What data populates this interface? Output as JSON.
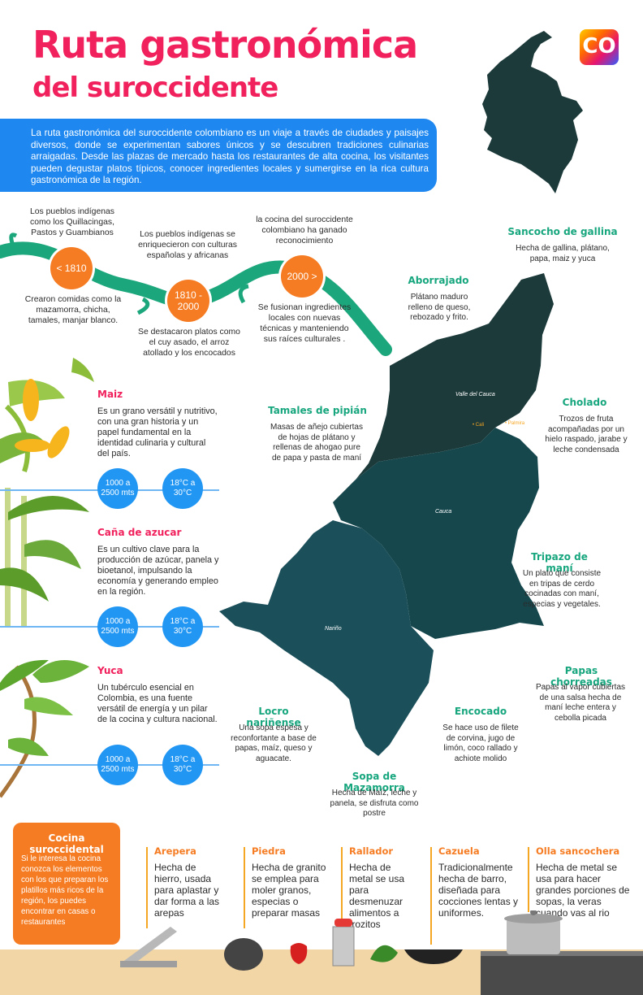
{
  "title_line1": "Ruta gastronómica",
  "title_line2": "del suroccidente",
  "logo_text": "CO",
  "intro": "La ruta gastronómica del suroccidente colombiano es un viaje a través de ciudades y paisajes diversos, donde se experimentan sabores únicos y se descubren tradiciones culinarias arraigadas. Desde las plazas de mercado hasta los restaurantes de alta cocina, los visitantes pueden degustar platos típicos, conocer ingredientes locales y sumergirse en la rica cultura gastronómica de la región.",
  "timeline": [
    {
      "label": "< 1810",
      "above": "Los pueblos indígenas como los Quillacingas, Pastos y Guambianos",
      "below": "Crearon comidas como la mazamorra, chicha, tamales, manjar blanco."
    },
    {
      "label": "1810 - 2000",
      "above": "Los pueblos indígenas se enriquecieron con culturas españolas y africanas",
      "below": "Se destacaron platos como el cuy asado, el arroz atollado y los encocados"
    },
    {
      "label": "2000 >",
      "above": "la cocina del suroccidente colombiano ha ganado reconocimiento",
      "below": "Se fusionan ingredientes locales con nuevas técnicas y manteniendo sus raíces culturales ."
    }
  ],
  "crops": [
    {
      "name": "Maiz",
      "desc": "Es un grano versátil y nutritivo, con una gran historia y un papel fundamental en la identidad culinaria y cultural del país.",
      "altitude": "1000 a 2500 mts",
      "temp": "18°C a 30°C"
    },
    {
      "name": "Caña de azucar",
      "desc": "Es un cultivo clave para la producción de azúcar, panela y bioetanol, impulsando la economía y generando empleo en la región.",
      "altitude": "1000 a 2500 mts",
      "temp": "18°C a 30°C"
    },
    {
      "name": "Yuca",
      "desc": "Un tubérculo esencial en Colombia, es una fuente versátil de energía y un pilar de la cocina y cultura nacional.",
      "altitude": "1000 a 2500 mts",
      "temp": "18°C a 30°C"
    }
  ],
  "dishes": [
    {
      "name": "Sancocho de gallina",
      "desc": "Hecha de gallina, plátano, papa, maiz y yuca"
    },
    {
      "name": "Aborrajado",
      "desc": "Plátano maduro relleno de queso, rebozado y frito."
    },
    {
      "name": "Cholado",
      "desc": "Trozos de fruta acompañadas por un hielo raspado, jarabe y leche condensada"
    },
    {
      "name": "Tamales de pipián",
      "desc": "Masas de añejo cubiertas de hojas de plátano y rellenas de ahogao pure de papa y pasta de maní"
    },
    {
      "name": "Tripazo de maní",
      "desc": "Un plato que consiste en tripas de cerdo cocinadas con maní, especias y vegetales."
    },
    {
      "name": "Papas chorreadas",
      "desc": "Papas al vapor cubiertas de una salsa hecha de maní leche entera y cebolla picada"
    },
    {
      "name": "Locro nariñense",
      "desc": "Una sopa espesa y reconfortante a base de papas, maíz, queso y aguacate."
    },
    {
      "name": "Encocado",
      "desc": "Se hace uso de filete de corvina, jugo de limón, coco rallado y achiote molido"
    },
    {
      "name": "Sopa de Mazamorra",
      "desc": "Hecha de Maíz, leche y panela, se disfruta como postre"
    }
  ],
  "map_labels": {
    "valle": "Valle del Cauca",
    "cauca": "Cauca",
    "narino": "Nariño",
    "cali": "Cali",
    "palmira": "Palmira"
  },
  "kitchen": {
    "title": "Cocina suroccidental",
    "desc": "Si le interesa la cocina conozca los elementos con los que preparan los platillos más ricos de la región, los puedes encontrar en casas o restaurantes"
  },
  "tools": [
    {
      "name": "Arepera",
      "desc": "Hecha de hierro, usada para aplastar y dar forma a las arepas"
    },
    {
      "name": "Piedra",
      "desc": "Hecha de granito se emplea para moler granos, especias o preparar masas"
    },
    {
      "name": "Rallador",
      "desc": "Hecha de metal se usa para desmenuzar alimentos a trozitos"
    },
    {
      "name": "Cazuela",
      "desc": "Tradicionalmente hecha de barro, diseñada para cocciones lentas y uniformes."
    },
    {
      "name": "Olla sancochera",
      "desc": "Hecha de metal se usa para hacer grandes porciones de sopas, la veras cuando vas al rio"
    }
  ],
  "colors": {
    "title": "#f0215c",
    "accent_blue": "#1e88f0",
    "map": "#1d3a3a",
    "map_cauca": "#15474d",
    "orange": "#f57c22",
    "green": "#17a67e"
  }
}
